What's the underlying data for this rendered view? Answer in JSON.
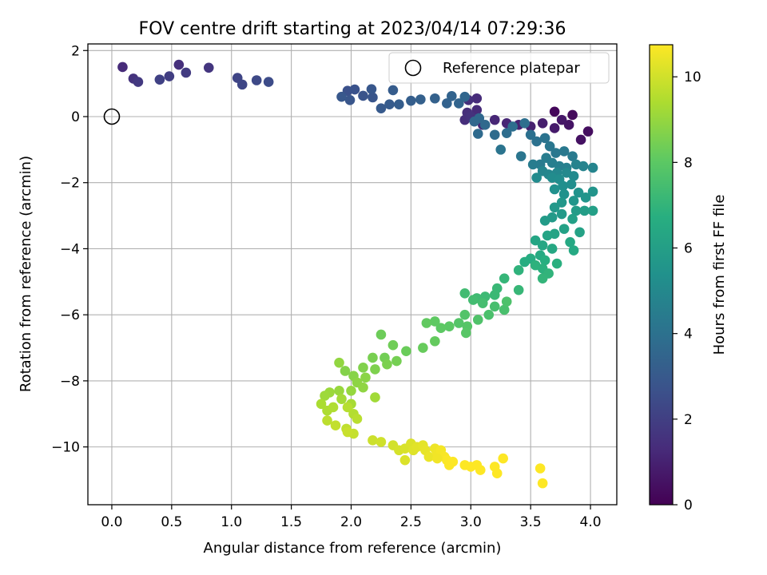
{
  "chart_data": {
    "type": "scatter",
    "title": "FOV centre drift starting at 2023/04/14 07:29:36",
    "xlabel": "Angular distance from reference (arcmin)",
    "ylabel": "Rotation from reference (arcmin)",
    "xlim": [
      -0.2,
      4.22
    ],
    "ylim": [
      -11.75,
      2.2
    ],
    "xticks": [
      0.0,
      0.5,
      1.0,
      1.5,
      2.0,
      2.5,
      3.0,
      3.5,
      4.0
    ],
    "xtick_labels": [
      "0.0",
      "0.5",
      "1.0",
      "1.5",
      "2.0",
      "2.5",
      "3.0",
      "3.5",
      "4.0"
    ],
    "yticks": [
      2,
      0,
      -2,
      -4,
      -6,
      -8,
      -10
    ],
    "ytick_labels": [
      "2",
      "0",
      "−2",
      "−4",
      "−6",
      "−8",
      "−10"
    ],
    "grid": true,
    "legend": {
      "position": "top-right",
      "entries": [
        {
          "label": "Reference platepar",
          "marker": "open-circle"
        }
      ]
    },
    "reference_point": {
      "x": 0.0,
      "y": 0.0
    },
    "colorbar": {
      "label": "Hours from first FF file",
      "range": [
        0,
        10.75
      ],
      "ticks": [
        0,
        2,
        4,
        6,
        8,
        10
      ],
      "tick_labels": [
        "0",
        "2",
        "4",
        "6",
        "8",
        "10"
      ],
      "colormap": "viridis"
    },
    "points": [
      {
        "x": 3.7,
        "y": 0.15,
        "c": 0.2
      },
      {
        "x": 3.85,
        "y": 0.05,
        "c": 0.3
      },
      {
        "x": 3.98,
        "y": -0.45,
        "c": 0.4
      },
      {
        "x": 3.92,
        "y": -0.7,
        "c": 0.5
      },
      {
        "x": 3.82,
        "y": -0.25,
        "c": 0.6
      },
      {
        "x": 3.76,
        "y": -0.1,
        "c": 0.7
      },
      {
        "x": 3.7,
        "y": -0.35,
        "c": 0.8
      },
      {
        "x": 3.6,
        "y": -0.2,
        "c": 0.9
      },
      {
        "x": 3.5,
        "y": -0.3,
        "c": 1.0
      },
      {
        "x": 3.4,
        "y": -0.25,
        "c": 1.1
      },
      {
        "x": 3.3,
        "y": -0.2,
        "c": 1.15
      },
      {
        "x": 3.2,
        "y": -0.1,
        "c": 1.2
      },
      {
        "x": 3.1,
        "y": -0.25,
        "c": 1.25
      },
      {
        "x": 3.05,
        "y": 0.2,
        "c": 1.3
      },
      {
        "x": 3.05,
        "y": 0.55,
        "c": 1.35
      },
      {
        "x": 2.95,
        "y": -0.1,
        "c": 1.4
      },
      {
        "x": 2.97,
        "y": 0.12,
        "c": 1.45
      },
      {
        "x": 2.98,
        "y": 0.5,
        "c": 1.5
      },
      {
        "x": 3.0,
        "y": 0.0,
        "c": 1.55
      },
      {
        "x": 0.09,
        "y": 1.5,
        "c": 1.3
      },
      {
        "x": 0.56,
        "y": 1.57,
        "c": 1.5
      },
      {
        "x": 0.81,
        "y": 1.48,
        "c": 1.7
      },
      {
        "x": 0.62,
        "y": 1.33,
        "c": 1.9
      },
      {
        "x": 0.48,
        "y": 1.22,
        "c": 2.0
      },
      {
        "x": 0.4,
        "y": 1.12,
        "c": 2.1
      },
      {
        "x": 0.18,
        "y": 1.15,
        "c": 1.6
      },
      {
        "x": 0.22,
        "y": 1.05,
        "c": 1.8
      },
      {
        "x": 1.05,
        "y": 1.17,
        "c": 2.2
      },
      {
        "x": 1.09,
        "y": 0.97,
        "c": 2.3
      },
      {
        "x": 1.21,
        "y": 1.1,
        "c": 2.4
      },
      {
        "x": 1.31,
        "y": 1.05,
        "c": 2.5
      },
      {
        "x": 1.97,
        "y": 0.78,
        "c": 2.7
      },
      {
        "x": 2.03,
        "y": 0.82,
        "c": 2.75
      },
      {
        "x": 2.1,
        "y": 0.63,
        "c": 2.8
      },
      {
        "x": 2.18,
        "y": 0.58,
        "c": 2.85
      },
      {
        "x": 1.99,
        "y": 0.5,
        "c": 2.9
      },
      {
        "x": 2.17,
        "y": 0.83,
        "c": 2.95
      },
      {
        "x": 1.92,
        "y": 0.6,
        "c": 3.0
      },
      {
        "x": 2.25,
        "y": 0.25,
        "c": 3.05
      },
      {
        "x": 2.32,
        "y": 0.37,
        "c": 3.1
      },
      {
        "x": 2.35,
        "y": 0.8,
        "c": 3.15
      },
      {
        "x": 2.4,
        "y": 0.37,
        "c": 3.2
      },
      {
        "x": 2.5,
        "y": 0.48,
        "c": 3.25
      },
      {
        "x": 2.58,
        "y": 0.52,
        "c": 3.3
      },
      {
        "x": 2.7,
        "y": 0.55,
        "c": 3.35
      },
      {
        "x": 2.8,
        "y": 0.4,
        "c": 3.4
      },
      {
        "x": 2.84,
        "y": 0.62,
        "c": 3.45
      },
      {
        "x": 2.9,
        "y": 0.4,
        "c": 3.5
      },
      {
        "x": 2.95,
        "y": 0.6,
        "c": 3.55
      },
      {
        "x": 3.03,
        "y": -0.15,
        "c": 3.6
      },
      {
        "x": 3.07,
        "y": -0.05,
        "c": 3.65
      },
      {
        "x": 3.12,
        "y": -0.25,
        "c": 3.7
      },
      {
        "x": 3.06,
        "y": -0.52,
        "c": 3.75
      },
      {
        "x": 3.2,
        "y": -0.55,
        "c": 3.8
      },
      {
        "x": 3.3,
        "y": -0.5,
        "c": 3.85
      },
      {
        "x": 3.35,
        "y": -0.3,
        "c": 3.9
      },
      {
        "x": 3.45,
        "y": -0.2,
        "c": 3.95
      },
      {
        "x": 3.5,
        "y": -0.55,
        "c": 4.0
      },
      {
        "x": 3.55,
        "y": -0.75,
        "c": 4.05
      },
      {
        "x": 3.62,
        "y": -0.65,
        "c": 4.1
      },
      {
        "x": 3.25,
        "y": -1.0,
        "c": 4.15
      },
      {
        "x": 3.42,
        "y": -1.2,
        "c": 4.2
      },
      {
        "x": 3.66,
        "y": -0.9,
        "c": 4.25
      },
      {
        "x": 3.71,
        "y": -1.1,
        "c": 4.3
      },
      {
        "x": 3.78,
        "y": -1.05,
        "c": 4.35
      },
      {
        "x": 3.85,
        "y": -1.2,
        "c": 4.4
      },
      {
        "x": 3.58,
        "y": -1.45,
        "c": 4.45
      },
      {
        "x": 3.52,
        "y": -1.45,
        "c": 4.5
      },
      {
        "x": 3.63,
        "y": -1.25,
        "c": 4.55
      },
      {
        "x": 3.68,
        "y": -1.4,
        "c": 4.6
      },
      {
        "x": 3.74,
        "y": -1.5,
        "c": 4.65
      },
      {
        "x": 3.8,
        "y": -1.55,
        "c": 4.7
      },
      {
        "x": 3.88,
        "y": -1.45,
        "c": 4.75
      },
      {
        "x": 3.94,
        "y": -1.5,
        "c": 4.8
      },
      {
        "x": 4.02,
        "y": -1.55,
        "c": 4.85
      },
      {
        "x": 3.6,
        "y": -1.65,
        "c": 4.9
      },
      {
        "x": 3.65,
        "y": -1.75,
        "c": 4.95
      },
      {
        "x": 3.72,
        "y": -1.7,
        "c": 5.0
      },
      {
        "x": 3.8,
        "y": -1.7,
        "c": 5.05
      },
      {
        "x": 3.86,
        "y": -1.8,
        "c": 5.1
      },
      {
        "x": 3.55,
        "y": -1.85,
        "c": 5.15
      },
      {
        "x": 3.68,
        "y": -1.85,
        "c": 5.2
      },
      {
        "x": 3.74,
        "y": -1.9,
        "c": 5.25
      },
      {
        "x": 3.84,
        "y": -2.05,
        "c": 5.3
      },
      {
        "x": 3.77,
        "y": -2.1,
        "c": 5.35
      },
      {
        "x": 3.7,
        "y": -2.2,
        "c": 5.4
      },
      {
        "x": 3.78,
        "y": -2.35,
        "c": 5.45
      },
      {
        "x": 3.9,
        "y": -2.3,
        "c": 5.5
      },
      {
        "x": 4.02,
        "y": -2.27,
        "c": 5.55
      },
      {
        "x": 3.96,
        "y": -2.45,
        "c": 5.6
      },
      {
        "x": 3.86,
        "y": -2.55,
        "c": 5.65
      },
      {
        "x": 3.76,
        "y": -2.6,
        "c": 5.7
      },
      {
        "x": 3.7,
        "y": -2.75,
        "c": 5.75
      },
      {
        "x": 3.76,
        "y": -2.95,
        "c": 5.8
      },
      {
        "x": 3.68,
        "y": -3.05,
        "c": 5.85
      },
      {
        "x": 3.62,
        "y": -3.15,
        "c": 5.9
      },
      {
        "x": 3.88,
        "y": -2.85,
        "c": 5.95
      },
      {
        "x": 3.95,
        "y": -2.85,
        "c": 6.0
      },
      {
        "x": 4.02,
        "y": -2.85,
        "c": 6.05
      },
      {
        "x": 3.85,
        "y": -3.1,
        "c": 6.1
      },
      {
        "x": 3.78,
        "y": -3.4,
        "c": 6.15
      },
      {
        "x": 3.91,
        "y": -3.5,
        "c": 6.2
      },
      {
        "x": 3.7,
        "y": -3.55,
        "c": 6.25
      },
      {
        "x": 3.64,
        "y": -3.6,
        "c": 6.3
      },
      {
        "x": 3.54,
        "y": -3.75,
        "c": 6.35
      },
      {
        "x": 3.6,
        "y": -3.9,
        "c": 6.4
      },
      {
        "x": 3.68,
        "y": -4.0,
        "c": 6.45
      },
      {
        "x": 3.83,
        "y": -3.8,
        "c": 6.5
      },
      {
        "x": 3.86,
        "y": -4.05,
        "c": 6.55
      },
      {
        "x": 3.58,
        "y": -4.2,
        "c": 6.6
      },
      {
        "x": 3.5,
        "y": -4.3,
        "c": 6.65
      },
      {
        "x": 3.45,
        "y": -4.4,
        "c": 6.7
      },
      {
        "x": 3.62,
        "y": -4.35,
        "c": 6.75
      },
      {
        "x": 3.72,
        "y": -4.45,
        "c": 6.8
      },
      {
        "x": 3.6,
        "y": -4.6,
        "c": 6.85
      },
      {
        "x": 3.54,
        "y": -4.5,
        "c": 6.9
      },
      {
        "x": 3.4,
        "y": -4.65,
        "c": 6.95
      },
      {
        "x": 3.65,
        "y": -4.75,
        "c": 7.0
      },
      {
        "x": 3.6,
        "y": -4.9,
        "c": 7.05
      },
      {
        "x": 3.28,
        "y": -4.9,
        "c": 7.1
      },
      {
        "x": 3.4,
        "y": -5.25,
        "c": 7.15
      },
      {
        "x": 3.22,
        "y": -5.2,
        "c": 7.2
      },
      {
        "x": 3.2,
        "y": -5.4,
        "c": 7.25
      },
      {
        "x": 3.12,
        "y": -5.45,
        "c": 7.3
      },
      {
        "x": 3.05,
        "y": -5.5,
        "c": 7.35
      },
      {
        "x": 2.95,
        "y": -5.35,
        "c": 7.4
      },
      {
        "x": 3.02,
        "y": -5.55,
        "c": 7.45
      },
      {
        "x": 3.1,
        "y": -5.65,
        "c": 7.5
      },
      {
        "x": 3.2,
        "y": -5.75,
        "c": 7.55
      },
      {
        "x": 3.28,
        "y": -5.85,
        "c": 7.6
      },
      {
        "x": 3.15,
        "y": -6.0,
        "c": 7.65
      },
      {
        "x": 3.3,
        "y": -5.6,
        "c": 7.7
      },
      {
        "x": 3.06,
        "y": -6.15,
        "c": 7.75
      },
      {
        "x": 2.95,
        "y": -6.0,
        "c": 7.8
      },
      {
        "x": 2.9,
        "y": -6.25,
        "c": 7.85
      },
      {
        "x": 2.97,
        "y": -6.35,
        "c": 7.9
      },
      {
        "x": 2.96,
        "y": -6.55,
        "c": 7.95
      },
      {
        "x": 2.82,
        "y": -6.35,
        "c": 8.0
      },
      {
        "x": 2.75,
        "y": -6.4,
        "c": 8.05
      },
      {
        "x": 2.7,
        "y": -6.2,
        "c": 8.1
      },
      {
        "x": 2.63,
        "y": -6.25,
        "c": 8.15
      },
      {
        "x": 2.7,
        "y": -6.8,
        "c": 8.2
      },
      {
        "x": 2.6,
        "y": -7.0,
        "c": 8.25
      },
      {
        "x": 2.46,
        "y": -7.1,
        "c": 8.3
      },
      {
        "x": 2.25,
        "y": -6.6,
        "c": 8.35
      },
      {
        "x": 2.35,
        "y": -6.92,
        "c": 8.4
      },
      {
        "x": 2.28,
        "y": -7.3,
        "c": 8.45
      },
      {
        "x": 2.38,
        "y": -7.4,
        "c": 8.5
      },
      {
        "x": 2.18,
        "y": -7.3,
        "c": 8.55
      },
      {
        "x": 2.3,
        "y": -7.5,
        "c": 8.6
      },
      {
        "x": 2.2,
        "y": -7.65,
        "c": 8.65
      },
      {
        "x": 2.1,
        "y": -7.6,
        "c": 8.7
      },
      {
        "x": 1.95,
        "y": -7.7,
        "c": 8.75
      },
      {
        "x": 2.02,
        "y": -7.85,
        "c": 8.8
      },
      {
        "x": 2.12,
        "y": -7.9,
        "c": 8.85
      },
      {
        "x": 2.05,
        "y": -8.05,
        "c": 8.9
      },
      {
        "x": 2.1,
        "y": -8.2,
        "c": 8.95
      },
      {
        "x": 1.9,
        "y": -7.45,
        "c": 9.0
      },
      {
        "x": 2.0,
        "y": -8.3,
        "c": 9.05
      },
      {
        "x": 1.9,
        "y": -8.3,
        "c": 9.1
      },
      {
        "x": 1.82,
        "y": -8.35,
        "c": 9.15
      },
      {
        "x": 1.78,
        "y": -8.45,
        "c": 9.2
      },
      {
        "x": 2.2,
        "y": -8.5,
        "c": 9.25
      },
      {
        "x": 1.92,
        "y": -8.55,
        "c": 9.3
      },
      {
        "x": 2.0,
        "y": -8.7,
        "c": 9.35
      },
      {
        "x": 1.75,
        "y": -8.7,
        "c": 9.4
      },
      {
        "x": 1.8,
        "y": -8.9,
        "c": 9.45
      },
      {
        "x": 1.85,
        "y": -8.8,
        "c": 9.5
      },
      {
        "x": 2.02,
        "y": -9.0,
        "c": 9.55
      },
      {
        "x": 1.97,
        "y": -8.8,
        "c": 9.6
      },
      {
        "x": 2.05,
        "y": -9.15,
        "c": 9.65
      },
      {
        "x": 1.8,
        "y": -9.2,
        "c": 9.7
      },
      {
        "x": 1.96,
        "y": -9.45,
        "c": 9.75
      },
      {
        "x": 1.87,
        "y": -9.35,
        "c": 9.8
      },
      {
        "x": 2.02,
        "y": -9.6,
        "c": 9.85
      },
      {
        "x": 1.97,
        "y": -9.55,
        "c": 9.9
      },
      {
        "x": 2.18,
        "y": -9.8,
        "c": 9.95
      },
      {
        "x": 2.25,
        "y": -9.85,
        "c": 10.0
      },
      {
        "x": 2.35,
        "y": -9.95,
        "c": 10.05
      },
      {
        "x": 2.4,
        "y": -10.1,
        "c": 10.1
      },
      {
        "x": 2.45,
        "y": -10.05,
        "c": 10.15
      },
      {
        "x": 2.5,
        "y": -9.9,
        "c": 10.2
      },
      {
        "x": 2.52,
        "y": -10.1,
        "c": 10.25
      },
      {
        "x": 2.55,
        "y": -10.0,
        "c": 10.3
      },
      {
        "x": 2.6,
        "y": -9.95,
        "c": 10.35
      },
      {
        "x": 2.62,
        "y": -10.1,
        "c": 10.4
      },
      {
        "x": 2.65,
        "y": -10.3,
        "c": 10.45
      },
      {
        "x": 2.7,
        "y": -10.05,
        "c": 10.5
      },
      {
        "x": 2.72,
        "y": -10.2,
        "c": 10.55
      },
      {
        "x": 2.75,
        "y": -10.1,
        "c": 10.6
      },
      {
        "x": 2.78,
        "y": -10.3,
        "c": 10.65
      },
      {
        "x": 2.8,
        "y": -10.4,
        "c": 10.7
      },
      {
        "x": 2.82,
        "y": -10.55,
        "c": 10.72
      },
      {
        "x": 2.85,
        "y": -10.45,
        "c": 10.74
      },
      {
        "x": 2.45,
        "y": -10.4,
        "c": 10.2
      },
      {
        "x": 2.72,
        "y": -10.35,
        "c": 10.55
      },
      {
        "x": 2.95,
        "y": -10.55,
        "c": 10.75
      },
      {
        "x": 3.0,
        "y": -10.6,
        "c": 10.75
      },
      {
        "x": 3.05,
        "y": -10.55,
        "c": 10.75
      },
      {
        "x": 3.08,
        "y": -10.7,
        "c": 10.75
      },
      {
        "x": 3.2,
        "y": -10.6,
        "c": 10.75
      },
      {
        "x": 3.22,
        "y": -10.8,
        "c": 10.75
      },
      {
        "x": 3.27,
        "y": -10.35,
        "c": 10.75
      },
      {
        "x": 3.58,
        "y": -10.65,
        "c": 10.75
      },
      {
        "x": 3.6,
        "y": -11.1,
        "c": 10.75
      }
    ]
  }
}
